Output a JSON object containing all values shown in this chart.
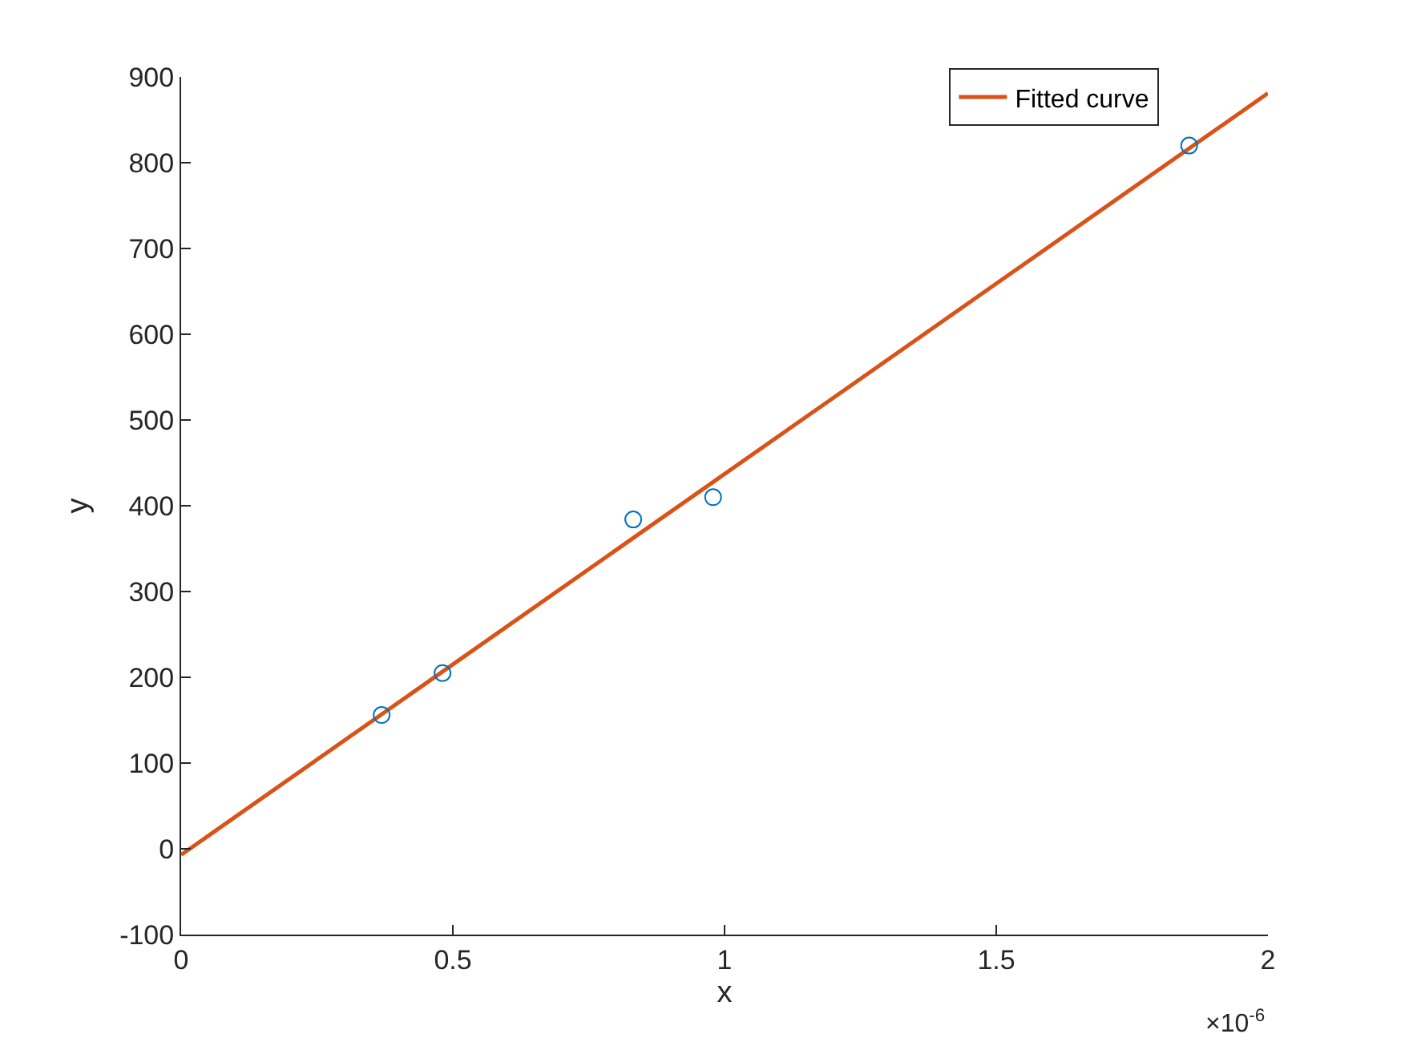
{
  "chart_data": {
    "type": "scatter",
    "xlabel": "x",
    "ylabel": "y",
    "xlim": [
      0,
      2
    ],
    "xticks": [
      0,
      0.5,
      1,
      1.5,
      2
    ],
    "ylim": [
      -100,
      900
    ],
    "yticks": [
      -100,
      0,
      100,
      200,
      300,
      400,
      500,
      600,
      700,
      800,
      900
    ],
    "annotations": [
      "×10$^{-6}$"
    ],
    "grid": false,
    "legend": "top right",
    "marker": "circle",
    "series": [
      {
        "color": "#0072bd",
        "x": [
          0.369,
          0.481,
          0.832,
          0.979,
          1.855
        ],
        "values": [
          156,
          205,
          384,
          410,
          820
        ]
      },
      {
        "type": "line",
        "name": "Fitted curve",
        "color": "#d95319",
        "line_style": "solid",
        "marker": "none",
        "x": [
          0,
          2
        ],
        "values": [
          -7,
          881
        ]
      }
    ]
  }
}
